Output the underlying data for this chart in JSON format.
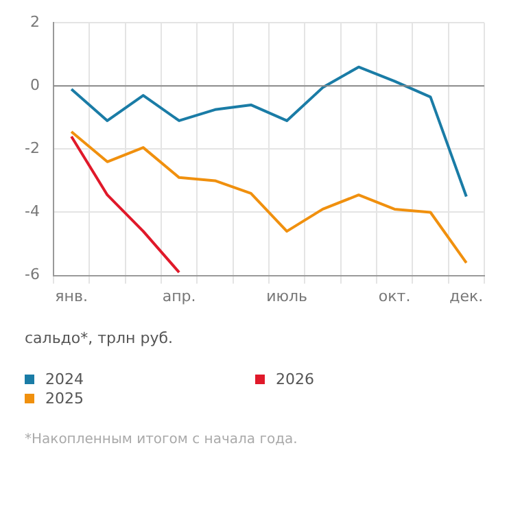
{
  "chart_data": {
    "type": "line",
    "ylabel": "сальдо*, трлн руб.",
    "categories": [
      "янв.",
      null,
      null,
      "апр.",
      null,
      null,
      "июль",
      null,
      null,
      "окт.",
      null,
      "дек."
    ],
    "series": [
      {
        "name": "2024",
        "color": "#1a7ca6",
        "values": [
          -0.1,
          -1.1,
          -0.3,
          -1.1,
          -0.75,
          -0.6,
          -1.1,
          -0.05,
          0.6,
          0.15,
          -0.35,
          -3.5
        ]
      },
      {
        "name": "2025",
        "color": "#f0900e",
        "values": [
          -1.45,
          -2.4,
          -1.95,
          -2.9,
          -3.0,
          -3.4,
          -4.6,
          -3.9,
          -3.45,
          -3.9,
          -4.0,
          -5.6
        ]
      },
      {
        "name": "2026",
        "color": "#e0192a",
        "values": [
          -1.6,
          -3.45,
          -4.6,
          -5.9,
          null,
          null,
          null,
          null,
          null,
          null,
          null,
          null
        ]
      }
    ],
    "ylim": [
      -6,
      2
    ],
    "yticks": [
      -6,
      -4,
      -2,
      0,
      2
    ],
    "grid": true,
    "legend": "bottom",
    "marker": "none",
    "line_style": "solid",
    "ref_lines": [
      {
        "axis": "y",
        "value": 0,
        "color": "#8a8a8a"
      }
    ],
    "annotations": [
      "*Накопленным итогом с начала года."
    ]
  }
}
